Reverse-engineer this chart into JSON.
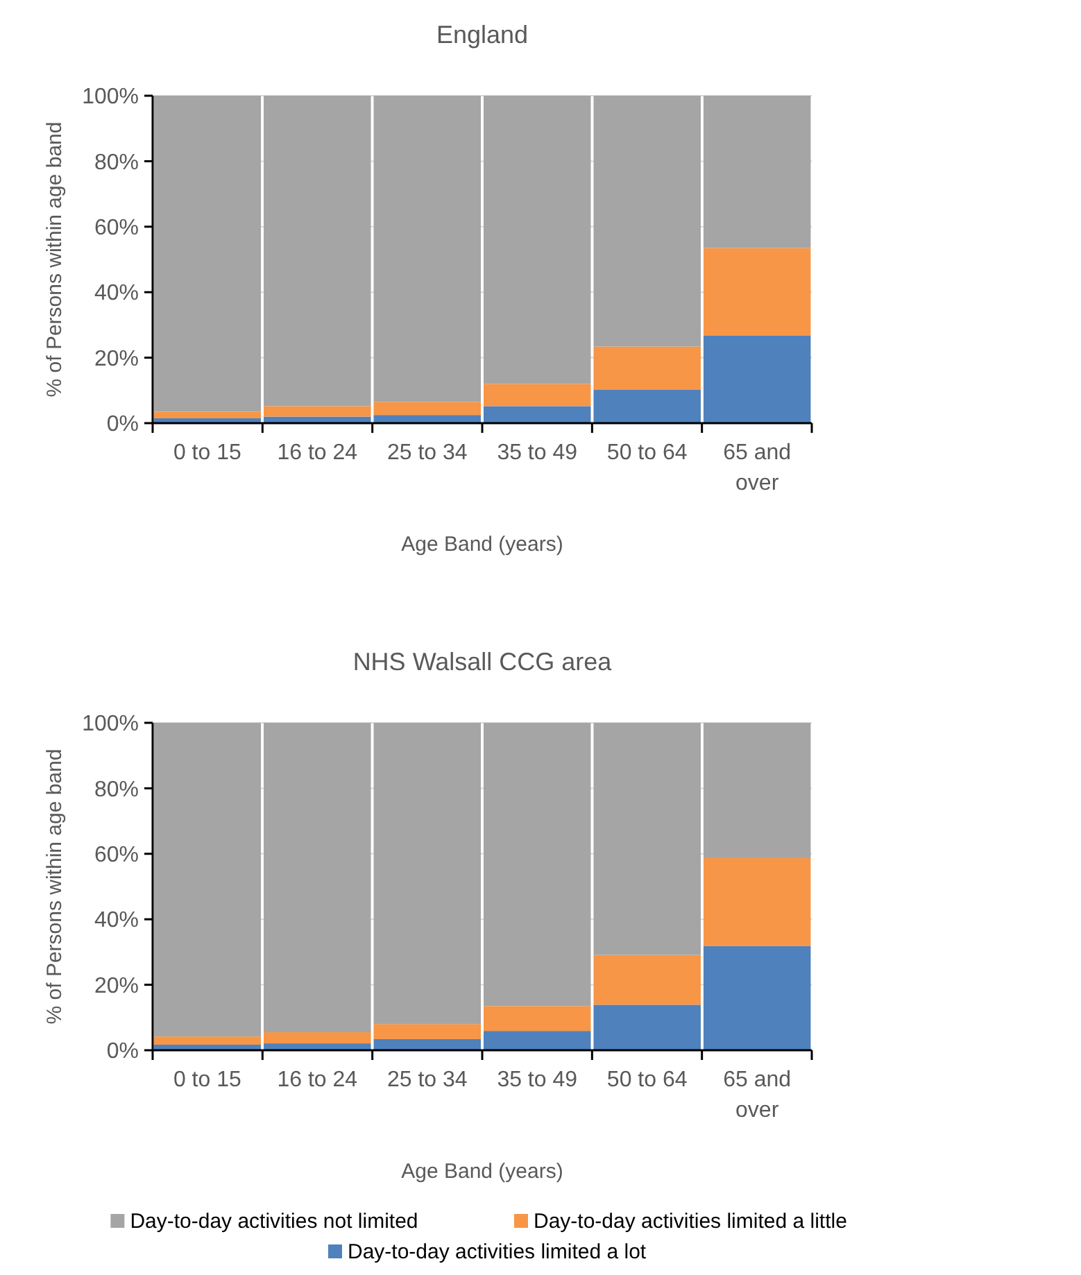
{
  "chart_data": [
    {
      "type": "bar",
      "title": "England",
      "xlabel": "Age Band (years)",
      "ylabel": "% of Persons within age band",
      "categories": [
        "0 to 15",
        "16 to 24",
        "25 to 34",
        "35 to 49",
        "50 to 64",
        "65 and over"
      ],
      "stacked": true,
      "ylim": [
        0,
        100
      ],
      "yticks": [
        {
          "value": 0,
          "label": "0%"
        },
        {
          "value": 20,
          "label": "20%"
        },
        {
          "value": 40,
          "label": "40%"
        },
        {
          "value": 60,
          "label": "60%"
        },
        {
          "value": 80,
          "label": "80%"
        },
        {
          "value": 100,
          "label": "100%"
        }
      ],
      "grid": "y",
      "legend": false,
      "series": [
        {
          "color": "#4f81bd",
          "values": [
            1.5,
            2,
            2.5,
            5.2,
            10.3,
            26.7
          ]
        },
        {
          "color": "#f79646",
          "values": [
            2,
            3.2,
            4,
            6.8,
            13.1,
            26.8
          ]
        },
        {
          "color": "#a5a5a5",
          "values": [
            96.5,
            94.8,
            93.5,
            88,
            76.6,
            46.5
          ]
        }
      ]
    },
    {
      "type": "bar",
      "title": "NHS Walsall CCG area",
      "xlabel": "Age Band (years)",
      "ylabel": "% of Persons within age band",
      "categories": [
        "0 to 15",
        "16 to 24",
        "25 to 34",
        "35 to 49",
        "50 to 64",
        "65 and over"
      ],
      "stacked": true,
      "ylim": [
        0,
        100
      ],
      "yticks": [
        {
          "value": 0,
          "label": "0%"
        },
        {
          "value": 20,
          "label": "20%"
        },
        {
          "value": 40,
          "label": "40%"
        },
        {
          "value": 60,
          "label": "60%"
        },
        {
          "value": 80,
          "label": "80%"
        },
        {
          "value": 100,
          "label": "100%"
        }
      ],
      "grid": "y",
      "legend": "bottom",
      "series": [
        {
          "name": "Day-to-day activities limited a lot",
          "color": "#4f81bd",
          "values": [
            1.7,
            2.1,
            3.4,
            5.9,
            13.9,
            31.8
          ]
        },
        {
          "name": "Day-to-day activities limited a little",
          "color": "#f79646",
          "values": [
            2.5,
            3.4,
            4.6,
            7.6,
            15.2,
            26.9
          ]
        },
        {
          "name": "Day-to-day activities not limited",
          "color": "#a5a5a5",
          "values": [
            95.8,
            94.5,
            92,
            86.5,
            70.9,
            41.3
          ]
        }
      ]
    }
  ]
}
